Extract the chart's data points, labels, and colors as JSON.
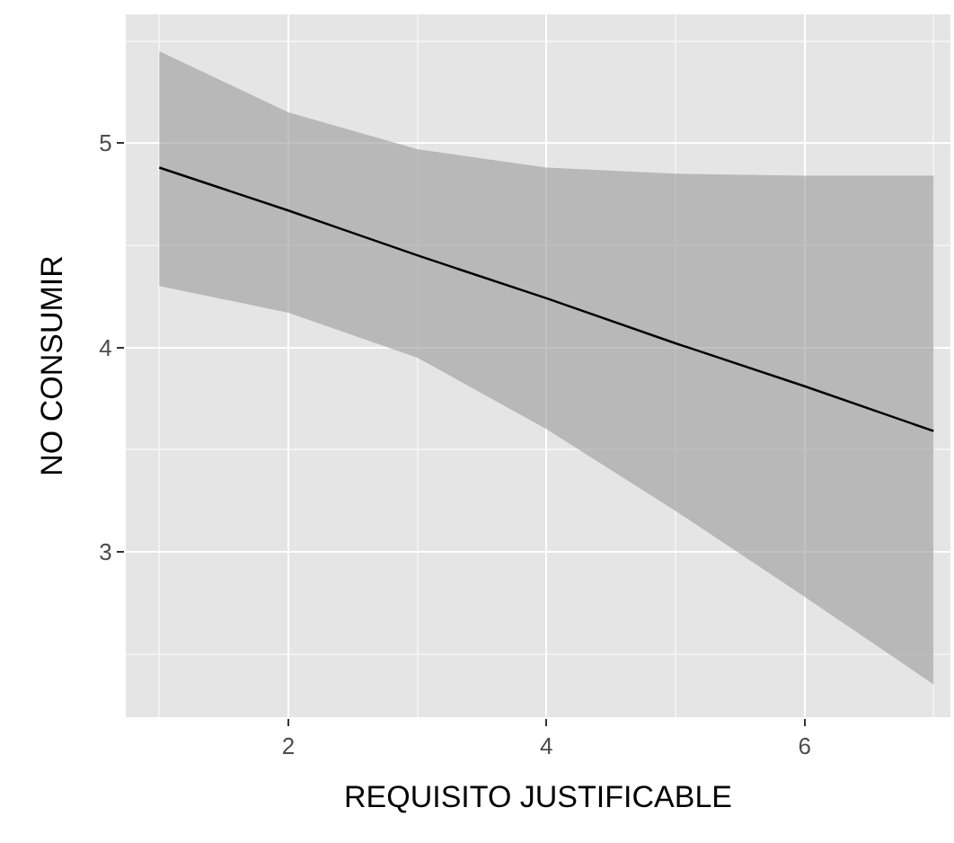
{
  "chart_data": {
    "type": "line",
    "xlabel": "REQUISITO JUSTIFICABLE",
    "ylabel": "NO CONSUMIR",
    "x": [
      1,
      2,
      3,
      4,
      5,
      6,
      7
    ],
    "series": [
      {
        "color": "#000000",
        "values": [
          4.88,
          4.67,
          4.45,
          4.24,
          4.02,
          3.81,
          3.59
        ],
        "lower": [
          4.3,
          4.17,
          3.95,
          3.6,
          3.2,
          2.78,
          2.35
        ],
        "upper": [
          5.45,
          5.15,
          4.97,
          4.88,
          4.85,
          4.84,
          4.84
        ]
      }
    ],
    "xlim": [
      0.74,
      7.13
    ],
    "xticks": [
      2,
      4,
      6
    ],
    "ylim": [
      2.19,
      5.63
    ],
    "yticks": [
      3,
      4,
      5
    ],
    "grid": true,
    "marker": "none",
    "line_style": "solid"
  }
}
